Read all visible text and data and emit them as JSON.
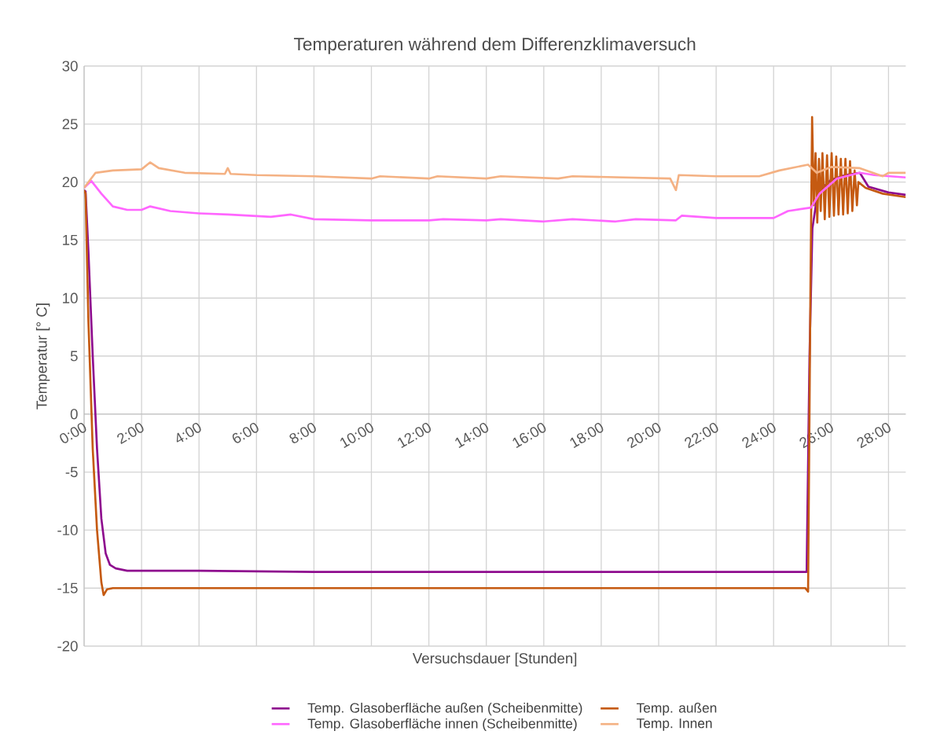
{
  "chart_data": {
    "type": "line",
    "title": "Temperaturen während dem Differenzklimaversuch",
    "xlabel": "Versuchsdauer [Stunden]",
    "ylabel": "Temperatur [° C]",
    "xlim": [
      0,
      28.6
    ],
    "ylim": [
      -20,
      30
    ],
    "xticks": [
      {
        "value": 0,
        "label": "0:00"
      },
      {
        "value": 2,
        "label": "2:00"
      },
      {
        "value": 4,
        "label": "4:00"
      },
      {
        "value": 6,
        "label": "6:00"
      },
      {
        "value": 8,
        "label": "8:00"
      },
      {
        "value": 10,
        "label": "10:00"
      },
      {
        "value": 12,
        "label": "12:00"
      },
      {
        "value": 14,
        "label": "14:00"
      },
      {
        "value": 16,
        "label": "16:00"
      },
      {
        "value": 18,
        "label": "18:00"
      },
      {
        "value": 20,
        "label": "20:00"
      },
      {
        "value": 22,
        "label": "22:00"
      },
      {
        "value": 24,
        "label": "24:00"
      },
      {
        "value": 26,
        "label": "26:00"
      },
      {
        "value": 28,
        "label": "28:00"
      }
    ],
    "yticks": [
      -20,
      -15,
      -10,
      -5,
      0,
      5,
      10,
      15,
      20,
      25,
      30
    ],
    "grid": true,
    "legend": "bottom",
    "marker": "none",
    "line_style": "solid",
    "series": [
      {
        "name": "Temp. Glasoberfläche außen (Scheibenmitte)",
        "color": "#8e0c8e",
        "x": [
          0,
          0.05,
          0.15,
          0.3,
          0.45,
          0.6,
          0.75,
          0.9,
          1.1,
          1.5,
          2,
          4,
          8,
          12,
          16,
          20,
          24,
          25.15,
          25.25,
          25.35,
          25.5,
          25.7,
          26,
          26.5,
          27,
          27.3,
          28,
          28.6
        ],
        "values": [
          19.3,
          19.2,
          14,
          5,
          -3,
          -9,
          -12,
          -13,
          -13.3,
          -13.5,
          -13.5,
          -13.5,
          -13.6,
          -13.6,
          -13.6,
          -13.6,
          -13.6,
          -13.6,
          5,
          16,
          18.5,
          19.5,
          20.2,
          20.6,
          20.8,
          19.6,
          19.1,
          18.9
        ]
      },
      {
        "name": "Temp. außen",
        "color": "#c55a11",
        "x": [
          0,
          0.05,
          0.15,
          0.3,
          0.45,
          0.6,
          0.68,
          0.8,
          1,
          2,
          6,
          10,
          14,
          18,
          22,
          25.1,
          25.2,
          25.28,
          25.34,
          25.4,
          25.46,
          25.52,
          25.58,
          25.64,
          25.7,
          25.78,
          25.86,
          25.94,
          26.02,
          26.1,
          26.18,
          26.26,
          26.34,
          26.42,
          26.5,
          26.58,
          26.66,
          26.74,
          26.82,
          26.9,
          26.95,
          27.2,
          27.8,
          28.6
        ],
        "values": [
          19.3,
          19,
          8,
          -3,
          -10,
          -14.5,
          -15.6,
          -15.1,
          -15,
          -15,
          -15,
          -15,
          -15,
          -15,
          -15,
          -15,
          -15.3,
          10,
          25.6,
          18,
          22.5,
          16.5,
          22,
          17.5,
          22.5,
          16.8,
          22.3,
          17,
          22.5,
          17.1,
          22.2,
          17.2,
          22,
          17.2,
          22,
          17.3,
          21.8,
          17.5,
          21,
          18,
          20,
          19.5,
          19,
          18.7
        ]
      },
      {
        "name": "Temp. Glasoberfläche innen (Scheibenmitte)",
        "color": "#ff66ff",
        "x": [
          0,
          0.25,
          0.6,
          1,
          1.5,
          2,
          2.3,
          3,
          4,
          5,
          6.5,
          7.2,
          8,
          10,
          12,
          12.5,
          14,
          14.5,
          16,
          17,
          18.5,
          19.2,
          20.6,
          20.8,
          22,
          24,
          24.5,
          25.3,
          25.6,
          26.2,
          27,
          27.5,
          28.6
        ],
        "values": [
          19.5,
          20.1,
          19,
          17.9,
          17.6,
          17.6,
          17.9,
          17.5,
          17.3,
          17.2,
          17,
          17.2,
          16.8,
          16.7,
          16.7,
          16.8,
          16.7,
          16.8,
          16.6,
          16.8,
          16.6,
          16.8,
          16.7,
          17.1,
          16.9,
          16.9,
          17.5,
          17.8,
          19,
          20.3,
          20.8,
          20.6,
          20.4
        ]
      },
      {
        "name": "Temp. Innen",
        "color": "#f4b183",
        "x": [
          0,
          0.4,
          1,
          2,
          2.3,
          2.6,
          3.5,
          4.9,
          5,
          5.1,
          6,
          8,
          10,
          10.3,
          12,
          12.3,
          14,
          14.5,
          16.5,
          17,
          20.4,
          20.6,
          20.7,
          22,
          23.5,
          24.2,
          25.2,
          25.5,
          26,
          27,
          27.8,
          28,
          28.6
        ],
        "values": [
          19.5,
          20.8,
          21,
          21.1,
          21.7,
          21.2,
          20.8,
          20.7,
          21.2,
          20.7,
          20.6,
          20.5,
          20.3,
          20.5,
          20.3,
          20.5,
          20.3,
          20.5,
          20.3,
          20.5,
          20.3,
          19.3,
          20.6,
          20.5,
          20.5,
          21,
          21.5,
          20.8,
          21.3,
          21.2,
          20.5,
          20.8,
          20.8
        ]
      }
    ]
  }
}
